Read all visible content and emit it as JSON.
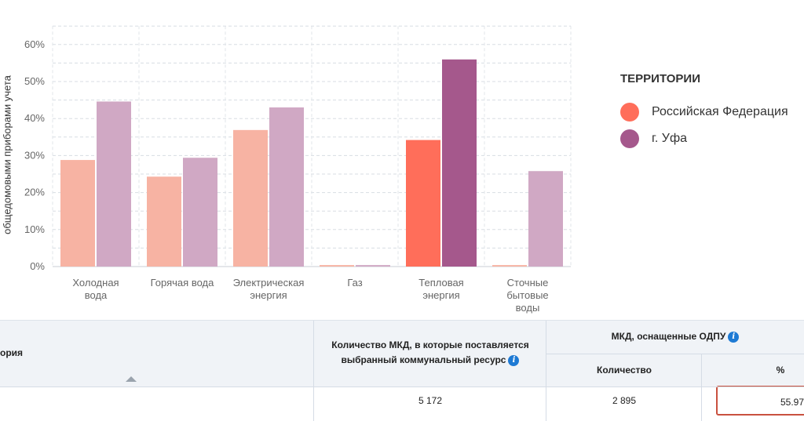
{
  "chart_data": {
    "type": "bar",
    "ylabel": "общедомовыми приборами учета",
    "ylim": [
      0,
      65
    ],
    "yticks": [
      "0%",
      "10%",
      "20%",
      "30%",
      "40%",
      "50%",
      "60%"
    ],
    "categories": [
      [
        "Холодная",
        "вода"
      ],
      [
        "Горячая вода"
      ],
      [
        "Электрическая",
        "энергия"
      ],
      [
        "Газ"
      ],
      [
        "Тепловая",
        "энергия"
      ],
      [
        "Сточные",
        "бытовые",
        "воды"
      ]
    ],
    "series": [
      {
        "name": "Российская Федерация",
        "values": [
          28.8,
          24.3,
          36.9,
          0.4,
          34.2,
          0.4
        ],
        "color": "#f7b3a3",
        "highlight_color": "#ff6e5a"
      },
      {
        "name": "г. Уфа",
        "values": [
          44.6,
          29.4,
          43.0,
          0.4,
          55.97,
          25.8
        ],
        "color": "#d0a8c4",
        "highlight_color": "#a5588c"
      }
    ],
    "highlight_index": 4,
    "grid": true,
    "legend": "right"
  },
  "legend": {
    "title": "ТЕРРИТОРИИ",
    "items": [
      {
        "label": "Российская Федерация",
        "color": "#ff6e5a"
      },
      {
        "label": "г. Уфа",
        "color": "#a5588c"
      }
    ]
  },
  "table": {
    "col1_header": "ория",
    "col2_header_line1": "Количество МКД, в которые поставляется",
    "col2_header_line2": "выбранный коммунальный ресурс",
    "group_header": "МКД, оснащенные ОДПУ",
    "sub_count": "Количество",
    "sub_pct": "%",
    "info_glyph": "i",
    "row": {
      "total": "5 172",
      "count": "2 895",
      "pct": "55.97"
    }
  }
}
